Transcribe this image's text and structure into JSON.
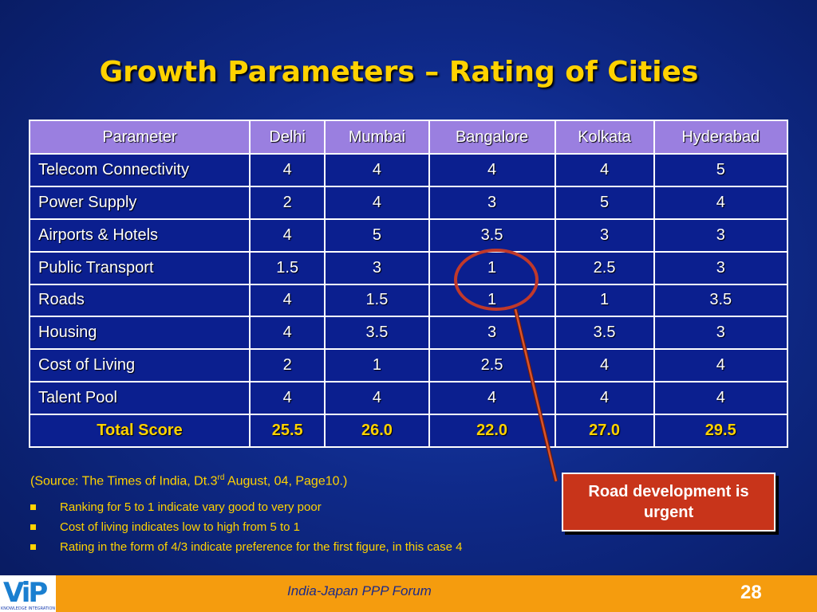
{
  "slide": {
    "title": "Growth Parameters – Rating of Cities",
    "page_number": "28",
    "footer_text": "India-Japan PPP Forum",
    "logo_text": "KNOWLEDGE INTEGRATION"
  },
  "table": {
    "headers": [
      "Parameter",
      "Delhi",
      "Mumbai",
      "Bangalore",
      "Kolkata",
      "Hyderabad"
    ],
    "rows": [
      [
        "Telecom Connectivity",
        "4",
        "4",
        "4",
        "4",
        "5"
      ],
      [
        "Power Supply",
        "2",
        "4",
        "3",
        "5",
        "4"
      ],
      [
        "Airports & Hotels",
        "4",
        "5",
        "3.5",
        "3",
        "3"
      ],
      [
        "Public Transport",
        "1.5",
        "3",
        "1",
        "2.5",
        "3"
      ],
      [
        "Roads",
        "4",
        "1.5",
        "1",
        "1",
        "3.5"
      ],
      [
        "Housing",
        "4",
        "3.5",
        "3",
        "3.5",
        "3"
      ],
      [
        "Cost of Living",
        "2",
        "1",
        "2.5",
        "4",
        "4"
      ],
      [
        "Talent Pool",
        "4",
        "4",
        "4",
        "4",
        "4"
      ],
      [
        "Total Score",
        "25.5",
        "26.0",
        "22.0",
        "27.0",
        "29.5"
      ]
    ]
  },
  "callout": {
    "text": "Road development is urgent",
    "color": "#c8341a"
  },
  "notes": {
    "source_prefix": "(Source: The Times of India, Dt.3",
    "source_sup": "rd",
    "source_suffix": " August, 04, Page10.)",
    "bullets": [
      "Ranking for 5 to 1 indicate vary good to very poor",
      "Cost of living indicates low to high from 5 to 1",
      "Rating in the form of 4/3 indicate preference for the first figure, in this case 4"
    ]
  },
  "colors": {
    "title": "#ffd200",
    "header_bg": "#9a7fe0",
    "footer_bg": "#f59c0e",
    "highlight_circle": "#c0392b"
  }
}
